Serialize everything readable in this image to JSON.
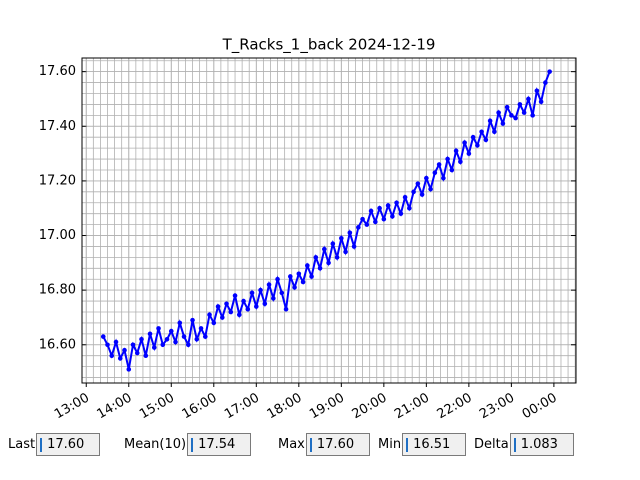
{
  "chart_data": {
    "type": "line",
    "title": "T_Racks_1_back 2024-12-19",
    "x": [
      13.4,
      13.5,
      13.6,
      13.7,
      13.8,
      13.9,
      14.0,
      14.1,
      14.2,
      14.3,
      14.4,
      14.5,
      14.6,
      14.7,
      14.8,
      14.9,
      15.0,
      15.1,
      15.2,
      15.3,
      15.4,
      15.5,
      15.6,
      15.7,
      15.8,
      15.9,
      16.0,
      16.1,
      16.2,
      16.3,
      16.4,
      16.5,
      16.6,
      16.7,
      16.8,
      16.9,
      17.0,
      17.1,
      17.2,
      17.3,
      17.4,
      17.5,
      17.6,
      17.7,
      17.8,
      17.9,
      18.0,
      18.1,
      18.2,
      18.3,
      18.4,
      18.5,
      18.6,
      18.7,
      18.8,
      18.9,
      19.0,
      19.1,
      19.2,
      19.3,
      19.4,
      19.5,
      19.6,
      19.7,
      19.8,
      19.9,
      20.0,
      20.1,
      20.2,
      20.3,
      20.4,
      20.5,
      20.6,
      20.7,
      20.8,
      20.9,
      21.0,
      21.1,
      21.2,
      21.3,
      21.4,
      21.5,
      21.6,
      21.7,
      21.8,
      21.9,
      22.0,
      22.1,
      22.2,
      22.3,
      22.4,
      22.5,
      22.6,
      22.7,
      22.8,
      22.9,
      23.0,
      23.1,
      23.2,
      23.3,
      23.4,
      23.5,
      23.6,
      23.7,
      23.8,
      23.9
    ],
    "series": [
      {
        "color": "#0000ff",
        "values": [
          16.63,
          16.6,
          16.56,
          16.61,
          16.55,
          16.58,
          16.51,
          16.6,
          16.57,
          16.62,
          16.56,
          16.64,
          16.59,
          16.66,
          16.6,
          16.62,
          16.65,
          16.61,
          16.68,
          16.63,
          16.6,
          16.69,
          16.62,
          16.66,
          16.63,
          16.71,
          16.68,
          16.74,
          16.7,
          16.75,
          16.72,
          16.78,
          16.71,
          16.76,
          16.73,
          16.79,
          16.74,
          16.8,
          16.75,
          16.82,
          16.77,
          16.84,
          16.79,
          16.73,
          16.85,
          16.81,
          16.86,
          16.83,
          16.89,
          16.85,
          16.92,
          16.88,
          16.95,
          16.9,
          16.97,
          16.92,
          16.99,
          16.94,
          17.01,
          16.96,
          17.03,
          17.06,
          17.04,
          17.09,
          17.05,
          17.1,
          17.06,
          17.11,
          17.07,
          17.12,
          17.08,
          17.14,
          17.1,
          17.16,
          17.19,
          17.15,
          17.21,
          17.17,
          17.23,
          17.26,
          17.21,
          17.28,
          17.24,
          17.31,
          17.27,
          17.34,
          17.3,
          17.36,
          17.33,
          17.38,
          17.35,
          17.42,
          17.38,
          17.45,
          17.41,
          17.47,
          17.44,
          17.43,
          17.48,
          17.45,
          17.5,
          17.44,
          17.53,
          17.49,
          17.56,
          17.6
        ]
      }
    ],
    "xlim": [
      12.9,
      24.52
    ],
    "xticks": [
      {
        "value": 13,
        "label": "13:00"
      },
      {
        "value": 14,
        "label": "14:00"
      },
      {
        "value": 15,
        "label": "15:00"
      },
      {
        "value": 16,
        "label": "16:00"
      },
      {
        "value": 17,
        "label": "17:00"
      },
      {
        "value": 18,
        "label": "18:00"
      },
      {
        "value": 19,
        "label": "19:00"
      },
      {
        "value": 20,
        "label": "20:00"
      },
      {
        "value": 21,
        "label": "21:00"
      },
      {
        "value": 22,
        "label": "22:00"
      },
      {
        "value": 23,
        "label": "23:00"
      },
      {
        "value": 24,
        "label": "00:00"
      }
    ],
    "ylim": [
      16.46,
      17.65
    ],
    "yticks": [
      {
        "value": 16.6,
        "label": "16.60"
      },
      {
        "value": 16.8,
        "label": "16.80"
      },
      {
        "value": 17.0,
        "label": "17.00"
      },
      {
        "value": 17.2,
        "label": "17.20"
      },
      {
        "value": 17.4,
        "label": "17.40"
      },
      {
        "value": 17.6,
        "label": "17.60"
      }
    ],
    "grid": true,
    "grid_minor_x": 6,
    "grid_minor_y": 5
  },
  "status": [
    {
      "label": "Last",
      "value": "17.60"
    },
    {
      "label": "Mean(10)",
      "value": "17.54"
    },
    {
      "label": "Max",
      "value": "17.60"
    },
    {
      "label": "Min",
      "value": "16.51"
    },
    {
      "label": "Delta",
      "value": "1.083"
    }
  ]
}
